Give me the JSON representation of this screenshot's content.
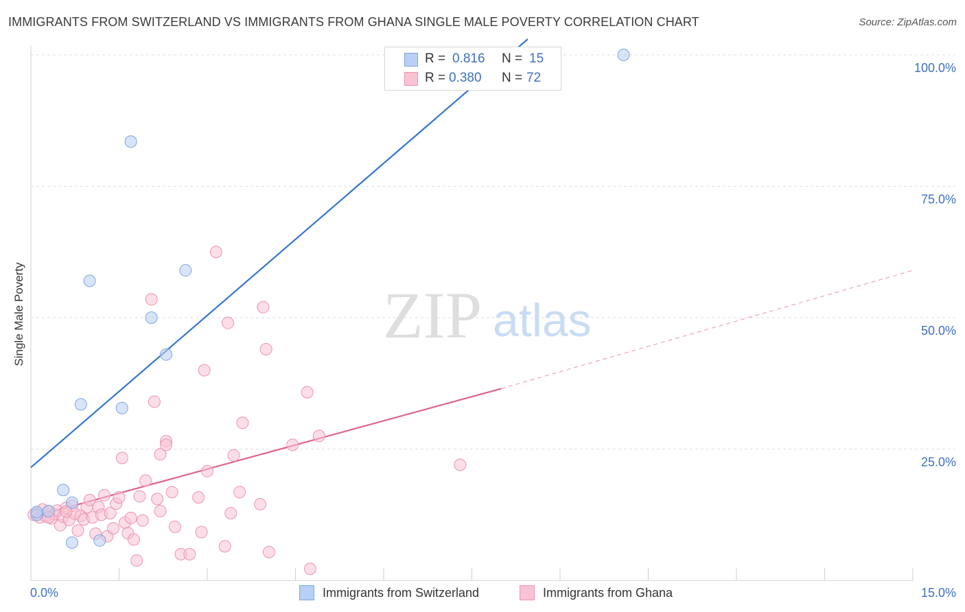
{
  "header": {
    "title": "IMMIGRANTS FROM SWITZERLAND VS IMMIGRANTS FROM GHANA SINGLE MALE POVERTY CORRELATION CHART",
    "source": "Source: ZipAtlas.com"
  },
  "watermark": {
    "zip": "ZIP",
    "atlas": "atlas"
  },
  "legend": {
    "r_label": "R =",
    "n_label": "N =",
    "rows": [
      {
        "r": "0.816",
        "n": "15"
      },
      {
        "r": "0.380",
        "n": "72"
      }
    ]
  },
  "colors": {
    "switzerland_fill": "#b8d0f3",
    "switzerland_stroke": "#7ea6df",
    "switzerland_line": "#3374d0",
    "ghana_fill": "#f8c3d3",
    "ghana_stroke": "#ee93b0",
    "ghana_line": "#e0628d",
    "axis_tick_text": "#3d70c0",
    "grid": "#dddddd"
  },
  "chart_data": {
    "type": "scatter",
    "title": "IMMIGRANTS FROM SWITZERLAND VS IMMIGRANTS FROM GHANA SINGLE MALE POVERTY CORRELATION CHART",
    "xlabel": "",
    "ylabel": "Single Male Poverty",
    "xlim": [
      0,
      15
    ],
    "ylim": [
      0,
      100
    ],
    "x_tick_labels": [
      "0.0%",
      "15.0%"
    ],
    "y_tick_labels": [
      "25.0%",
      "50.0%",
      "75.0%",
      "100.0%"
    ],
    "y_ticks": [
      25,
      50,
      75,
      100
    ],
    "grid": true,
    "legend_position": "top-center",
    "series": [
      {
        "name": "Immigrants from Switzerland",
        "r": 0.816,
        "n": 15,
        "points": [
          [
            0.1,
            12.5
          ],
          [
            0.1,
            13.0
          ],
          [
            0.55,
            17.2
          ],
          [
            0.7,
            14.8
          ],
          [
            0.7,
            7.2
          ],
          [
            0.85,
            33.5
          ],
          [
            1.0,
            57.0
          ],
          [
            1.17,
            7.6
          ],
          [
            1.55,
            32.8
          ],
          [
            1.7,
            83.5
          ],
          [
            2.05,
            50.0
          ],
          [
            2.3,
            43.0
          ],
          [
            2.63,
            59.0
          ],
          [
            10.08,
            100.0
          ],
          [
            0.3,
            13.2
          ]
        ],
        "trend": {
          "x": [
            0,
            8.45
          ],
          "y": [
            21.5,
            103.0
          ]
        }
      },
      {
        "name": "Immigrants from Ghana",
        "r": 0.38,
        "n": 72,
        "points": [
          [
            0.05,
            12.5
          ],
          [
            0.1,
            13.0
          ],
          [
            0.15,
            12.0
          ],
          [
            0.2,
            13.5
          ],
          [
            0.25,
            12.2
          ],
          [
            0.3,
            13.0
          ],
          [
            0.35,
            11.8
          ],
          [
            0.4,
            12.6
          ],
          [
            0.45,
            13.3
          ],
          [
            0.5,
            10.5
          ],
          [
            0.55,
            12.1
          ],
          [
            0.6,
            13.8
          ],
          [
            0.65,
            11.5
          ],
          [
            0.7,
            14.2
          ],
          [
            0.75,
            12.7
          ],
          [
            0.8,
            9.5
          ],
          [
            0.85,
            12.3
          ],
          [
            0.9,
            11.6
          ],
          [
            0.95,
            13.9
          ],
          [
            1.0,
            15.3
          ],
          [
            1.05,
            12.0
          ],
          [
            1.1,
            8.9
          ],
          [
            1.15,
            14.0
          ],
          [
            1.2,
            12.5
          ],
          [
            1.25,
            16.2
          ],
          [
            1.3,
            8.4
          ],
          [
            1.35,
            12.8
          ],
          [
            1.4,
            9.9
          ],
          [
            1.45,
            14.6
          ],
          [
            1.5,
            15.8
          ],
          [
            1.55,
            23.3
          ],
          [
            1.6,
            11.0
          ],
          [
            1.65,
            9.0
          ],
          [
            1.7,
            11.9
          ],
          [
            1.75,
            7.8
          ],
          [
            1.8,
            3.8
          ],
          [
            1.85,
            16.0
          ],
          [
            1.9,
            11.4
          ],
          [
            1.95,
            19.0
          ],
          [
            2.05,
            53.5
          ],
          [
            2.1,
            34.0
          ],
          [
            2.15,
            15.5
          ],
          [
            2.2,
            13.2
          ],
          [
            2.2,
            24.0
          ],
          [
            2.3,
            26.5
          ],
          [
            2.3,
            25.8
          ],
          [
            2.4,
            16.8
          ],
          [
            2.45,
            10.2
          ],
          [
            2.55,
            5.0
          ],
          [
            2.7,
            5.0
          ],
          [
            2.85,
            15.8
          ],
          [
            2.9,
            9.2
          ],
          [
            2.95,
            40.0
          ],
          [
            3.0,
            20.8
          ],
          [
            3.15,
            62.5
          ],
          [
            3.3,
            6.5
          ],
          [
            3.35,
            49.0
          ],
          [
            3.4,
            12.8
          ],
          [
            3.45,
            23.8
          ],
          [
            3.55,
            16.8
          ],
          [
            3.6,
            30.0
          ],
          [
            3.9,
            14.5
          ],
          [
            3.95,
            52.0
          ],
          [
            4.0,
            44.0
          ],
          [
            4.05,
            5.4
          ],
          [
            4.45,
            25.8
          ],
          [
            4.7,
            35.8
          ],
          [
            4.75,
            2.2
          ],
          [
            4.9,
            27.5
          ],
          [
            7.3,
            22.0
          ],
          [
            0.3,
            12.0
          ],
          [
            0.6,
            13.1
          ]
        ],
        "trend": {
          "x": [
            0,
            8.0
          ],
          "y": [
            12.0,
            36.5
          ]
        },
        "trend_extension": {
          "x": [
            8.0,
            15.0
          ],
          "y": [
            36.5,
            59.0
          ]
        }
      }
    ]
  }
}
